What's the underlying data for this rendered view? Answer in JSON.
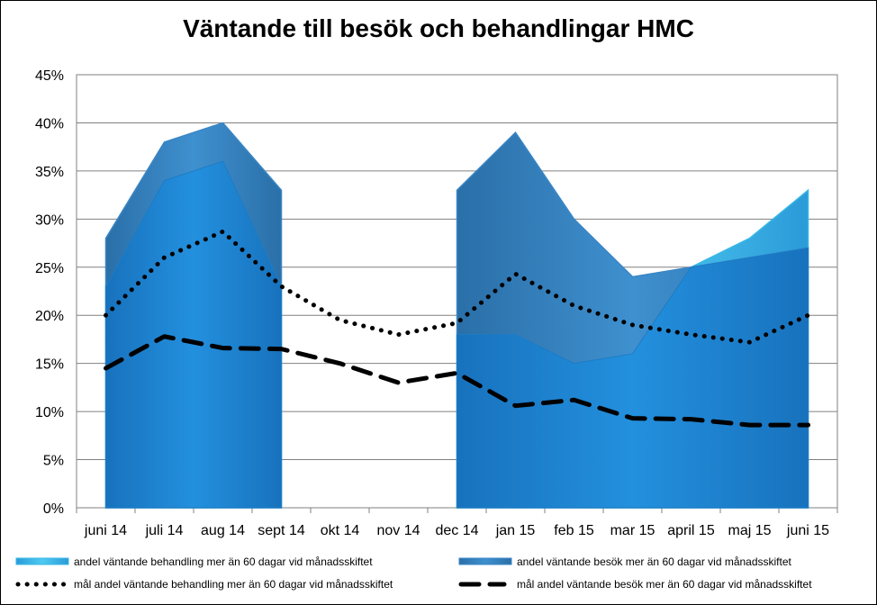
{
  "chart_data": {
    "type": "area",
    "title": "Väntande till besök och behandlingar HMC",
    "xlabel": "",
    "ylabel": "",
    "categories": [
      "juni 14",
      "juli 14",
      "aug 14",
      "sept 14",
      "okt 14",
      "nov 14",
      "dec 14",
      "jan 15",
      "feb 15",
      "mar 15",
      "april 15",
      "maj 15",
      "juni 15"
    ],
    "ylim": [
      0,
      45
    ],
    "yticks": [
      "0%",
      "5%",
      "10%",
      "15%",
      "20%",
      "25%",
      "30%",
      "35%",
      "40%",
      "45%"
    ],
    "grid": true,
    "legend_position": "bottom",
    "series": [
      {
        "name": "andel väntande behandling mer än 60 dagar vid månadsskiftet",
        "kind": "area",
        "color": "#3fc3ee",
        "values": [
          23,
          34,
          36,
          23,
          null,
          null,
          18,
          18,
          15,
          16,
          25,
          28,
          33
        ]
      },
      {
        "name": "andel väntande besök mer än 60 dagar vid månadsskiftet",
        "kind": "area",
        "color": "#2c8ad0",
        "values": [
          28,
          38,
          40,
          33,
          null,
          null,
          33,
          39,
          30,
          24,
          25,
          26,
          27
        ]
      },
      {
        "name": "mål andel väntande behandling mer än 60 dagar vid månadsskiftet",
        "kind": "line",
        "style": "dotted",
        "color": "#000000",
        "values": [
          20,
          26,
          28.7,
          23,
          19.5,
          18,
          19.2,
          24.3,
          21,
          19,
          18,
          17.2,
          20
        ]
      },
      {
        "name": "mål andel  väntande besök mer än 60 dagar vid månadsskiftet",
        "kind": "line",
        "style": "dashed",
        "color": "#000000",
        "values": [
          14.5,
          17.8,
          16.6,
          16.5,
          15,
          13,
          14,
          10.6,
          11.2,
          9.3,
          9.2,
          8.6,
          8.6
        ]
      }
    ]
  }
}
